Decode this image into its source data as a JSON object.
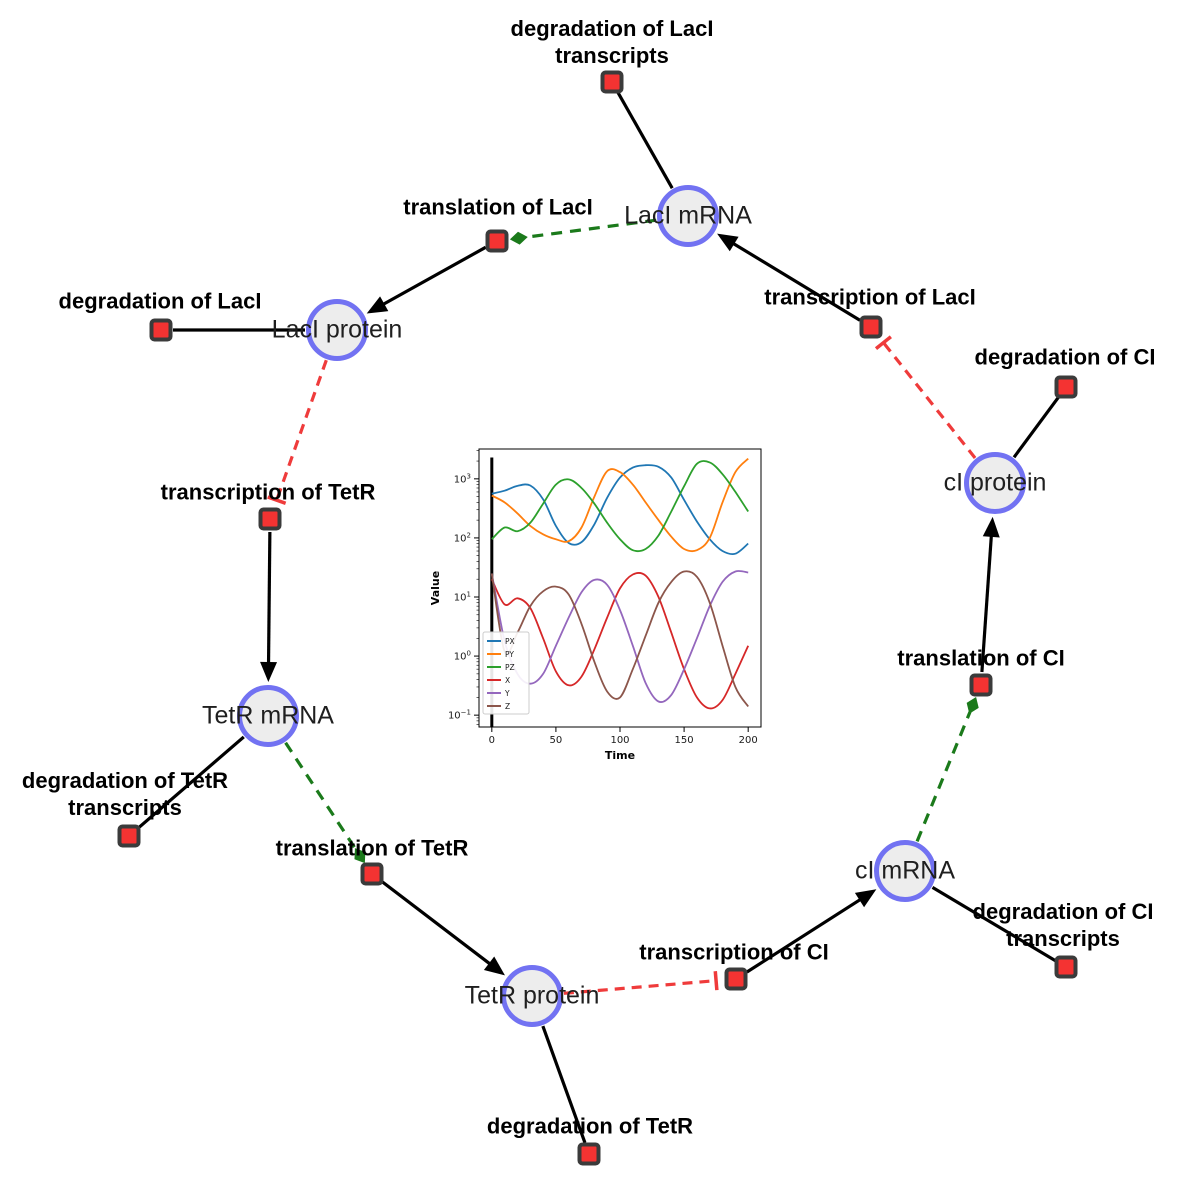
{
  "diagram": {
    "species_nodes": [
      {
        "id": "laci_mrna",
        "label": "LacI mRNA"
      },
      {
        "id": "laci_protein",
        "label": "LacI protein"
      },
      {
        "id": "ci_protein",
        "label": "cI protein"
      },
      {
        "id": "tetr_mrna",
        "label": "TetR mRNA"
      },
      {
        "id": "tetr_protein",
        "label": "TetR protein"
      },
      {
        "id": "ci_mrna",
        "label": "cI mRNA"
      }
    ],
    "reaction_nodes": [
      {
        "id": "deg_laci_tx",
        "lines": [
          "degradation of LacI",
          "transcripts"
        ]
      },
      {
        "id": "trl_laci",
        "lines": [
          "translation of LacI"
        ]
      },
      {
        "id": "deg_laci",
        "lines": [
          "degradation of LacI"
        ]
      },
      {
        "id": "txn_laci",
        "lines": [
          "transcription of LacI"
        ]
      },
      {
        "id": "deg_ci",
        "lines": [
          "degradation of CI"
        ]
      },
      {
        "id": "txn_tetr",
        "lines": [
          "transcription of TetR"
        ]
      },
      {
        "id": "deg_tetr_tx",
        "lines": [
          "degradation of TetR",
          "transcripts"
        ]
      },
      {
        "id": "trl_tetr",
        "lines": [
          "translation of TetR"
        ]
      },
      {
        "id": "deg_tetr",
        "lines": [
          "degradation of TetR"
        ]
      },
      {
        "id": "txn_ci",
        "lines": [
          "transcription of CI"
        ]
      },
      {
        "id": "deg_ci_tx",
        "lines": [
          "degradation of CI",
          "transcripts"
        ]
      },
      {
        "id": "trl_ci",
        "lines": [
          "translation of CI"
        ]
      }
    ],
    "edges": [
      {
        "source": "laci_mrna",
        "target": "deg_laci_tx",
        "type": "consumption"
      },
      {
        "source": "laci_mrna",
        "target": "trl_laci",
        "type": "modifier"
      },
      {
        "source": "trl_laci",
        "target": "laci_protein",
        "type": "production"
      },
      {
        "source": "txn_laci",
        "target": "laci_mrna",
        "type": "production"
      },
      {
        "source": "laci_protein",
        "target": "deg_laci",
        "type": "consumption"
      },
      {
        "source": "laci_protein",
        "target": "txn_tetr",
        "type": "inhibition"
      },
      {
        "source": "ci_protein",
        "target": "txn_laci",
        "type": "inhibition"
      },
      {
        "source": "ci_protein",
        "target": "deg_ci",
        "type": "consumption"
      },
      {
        "source": "txn_tetr",
        "target": "tetr_mrna",
        "type": "production"
      },
      {
        "source": "tetr_mrna",
        "target": "deg_tetr_tx",
        "type": "consumption"
      },
      {
        "source": "tetr_mrna",
        "target": "trl_tetr",
        "type": "modifier"
      },
      {
        "source": "trl_tetr",
        "target": "tetr_protein",
        "type": "production"
      },
      {
        "source": "tetr_protein",
        "target": "deg_tetr",
        "type": "consumption"
      },
      {
        "source": "tetr_protein",
        "target": "txn_ci",
        "type": "inhibition"
      },
      {
        "source": "txn_ci",
        "target": "ci_mrna",
        "type": "production"
      },
      {
        "source": "ci_mrna",
        "target": "deg_ci_tx",
        "type": "consumption"
      },
      {
        "source": "ci_mrna",
        "target": "trl_ci",
        "type": "modifier"
      },
      {
        "source": "trl_ci",
        "target": "ci_protein",
        "type": "production"
      }
    ]
  },
  "colors": {
    "species_fill": "#ededed",
    "species_border": "#7272f2",
    "reaction_fill": "#f43332",
    "reaction_border": "#3b3b3b",
    "edge_black": "#000000",
    "modifier_green": "#1b7a1b",
    "inhibition_red": "#ef3b3b"
  },
  "chart_data": {
    "type": "line",
    "xlabel": "Time",
    "ylabel": "Value",
    "yscale": "log",
    "grid": false,
    "legend_position": "lower left",
    "xlim": [
      -10,
      210
    ],
    "ylim": [
      0.063,
      3200
    ],
    "xticks": [
      0,
      50,
      100,
      150,
      200
    ],
    "yticks": [
      {
        "mantissa": "10",
        "exp": "−1"
      },
      {
        "mantissa": "10",
        "exp": "0"
      },
      {
        "mantissa": "10",
        "exp": "1"
      },
      {
        "mantissa": "10",
        "exp": "2"
      },
      {
        "mantissa": "10",
        "exp": "3"
      }
    ],
    "ytick_values": [
      0.1,
      1,
      10,
      100,
      1000
    ],
    "initial_spike_at_x": 0,
    "x": [
      0,
      10,
      20,
      30,
      40,
      50,
      60,
      70,
      80,
      90,
      100,
      110,
      120,
      130,
      140,
      150,
      160,
      170,
      180,
      190,
      200
    ],
    "series": [
      {
        "name": "PX",
        "color": "#1f77b4",
        "values": [
          560,
          630,
          760,
          770,
          450,
          160,
          82,
          85,
          170,
          480,
          1050,
          1550,
          1700,
          1600,
          1050,
          440,
          190,
          95,
          60,
          54,
          80
        ]
      },
      {
        "name": "PY",
        "color": "#ff7f0e",
        "values": [
          520,
          400,
          260,
          160,
          115,
          95,
          88,
          150,
          500,
          1350,
          1300,
          800,
          400,
          200,
          105,
          65,
          62,
          100,
          400,
          1300,
          2200
        ]
      },
      {
        "name": "PZ",
        "color": "#2ca02c",
        "values": [
          95,
          150,
          130,
          180,
          380,
          800,
          980,
          700,
          380,
          180,
          95,
          62,
          65,
          110,
          280,
          750,
          1800,
          1900,
          1200,
          600,
          280
        ]
      },
      {
        "name": "X",
        "color": "#d62728",
        "values": [
          20,
          7.5,
          9.5,
          6.5,
          2.0,
          0.55,
          0.32,
          0.45,
          1.3,
          4.5,
          14,
          24,
          23,
          10,
          2.5,
          0.6,
          0.2,
          0.13,
          0.18,
          0.5,
          1.5
        ]
      },
      {
        "name": "Y",
        "color": "#9467bd",
        "values": [
          25,
          1.8,
          0.5,
          0.34,
          0.5,
          1.5,
          4.5,
          12,
          19.5,
          16,
          6,
          1.5,
          0.35,
          0.17,
          0.22,
          0.6,
          2.0,
          7,
          18,
          27,
          26
        ]
      },
      {
        "name": "Z",
        "color": "#8c564b",
        "values": [
          25,
          1.2,
          2.5,
          7,
          12.5,
          15,
          11,
          3.5,
          0.8,
          0.25,
          0.2,
          0.6,
          2.2,
          8,
          18,
          27,
          22,
          8,
          1.5,
          0.3,
          0.14
        ]
      }
    ]
  }
}
